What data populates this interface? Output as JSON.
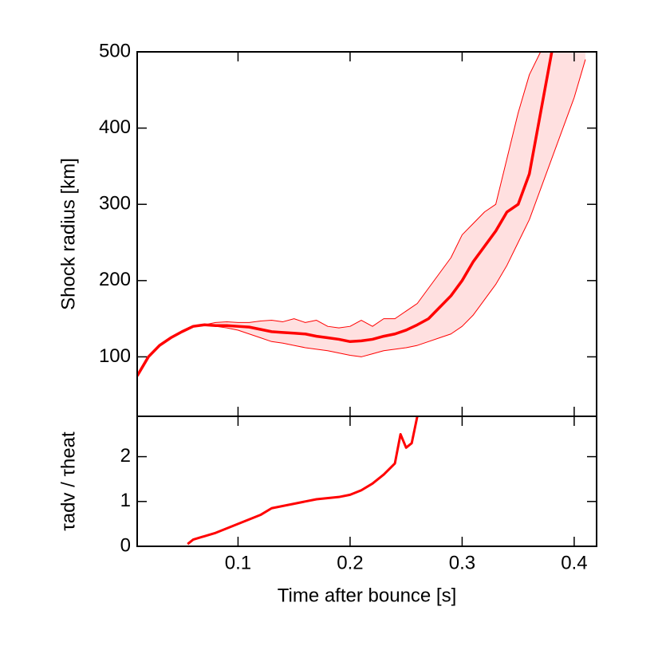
{
  "chart_data": [
    {
      "type": "line",
      "ylabel": "Shock radius [km]",
      "x": [
        0.01,
        0.02,
        0.03,
        0.04,
        0.05,
        0.06,
        0.07,
        0.08,
        0.09,
        0.1,
        0.11,
        0.12,
        0.13,
        0.14,
        0.15,
        0.16,
        0.17,
        0.18,
        0.19,
        0.2,
        0.21,
        0.22,
        0.23,
        0.24,
        0.25,
        0.26,
        0.27,
        0.28,
        0.29,
        0.3,
        0.31,
        0.32,
        0.33,
        0.34,
        0.35,
        0.36,
        0.37,
        0.38,
        0.39,
        0.4,
        0.41
      ],
      "band": true,
      "series": [
        {
          "color": "#ff0000",
          "values": [
            75,
            100,
            115,
            125,
            133,
            140,
            142,
            141,
            141,
            140,
            139,
            136,
            133,
            132,
            131,
            130,
            127,
            125,
            123,
            120,
            121,
            123,
            127,
            130,
            135,
            142,
            150,
            165,
            180,
            200,
            225,
            245,
            265,
            290,
            300,
            340,
            420,
            500,
            null,
            null,
            null
          ]
        },
        {
          "color": "#ff0000",
          "values": [
            75,
            100,
            115,
            125,
            133,
            140,
            142,
            145,
            146,
            145,
            145,
            147,
            148,
            146,
            150,
            145,
            148,
            140,
            138,
            140,
            148,
            140,
            150,
            150,
            160,
            170,
            190,
            210,
            230,
            260,
            275,
            290,
            300,
            360,
            420,
            470,
            500,
            null,
            null,
            null,
            null
          ]
        },
        {
          "color": "#ff0000",
          "values": [
            75,
            100,
            115,
            125,
            133,
            140,
            142,
            140,
            138,
            135,
            130,
            125,
            120,
            118,
            115,
            112,
            110,
            108,
            105,
            102,
            100,
            104,
            108,
            110,
            112,
            115,
            120,
            125,
            130,
            140,
            155,
            175,
            195,
            220,
            250,
            280,
            320,
            360,
            400,
            440,
            490
          ]
        }
      ],
      "xlim": [
        0.01,
        0.42
      ],
      "xticks": [
        0.1,
        0.2,
        0.3,
        0.4
      ],
      "ylim": [
        22,
        500
      ],
      "yticks": [
        100,
        200,
        300,
        400,
        500
      ]
    },
    {
      "type": "line",
      "ylabel": "τadv / τheat",
      "xlabel": "Time after bounce [s]",
      "x": [
        0.055,
        0.06,
        0.08,
        0.1,
        0.12,
        0.13,
        0.15,
        0.17,
        0.19,
        0.2,
        0.21,
        0.22,
        0.23,
        0.24,
        0.245,
        0.25,
        0.255,
        0.26
      ],
      "series": [
        {
          "color": "#ff0000",
          "values": [
            0.05,
            0.15,
            0.3,
            0.5,
            0.7,
            0.85,
            0.95,
            1.05,
            1.1,
            1.15,
            1.25,
            1.4,
            1.6,
            1.85,
            2.5,
            2.2,
            2.3,
            2.9
          ]
        }
      ],
      "xlim": [
        0.01,
        0.42
      ],
      "xticks": [
        0.1,
        0.2,
        0.3,
        0.4
      ],
      "ylim": [
        0,
        2.9
      ],
      "yticks": [
        0,
        1,
        2
      ]
    }
  ]
}
